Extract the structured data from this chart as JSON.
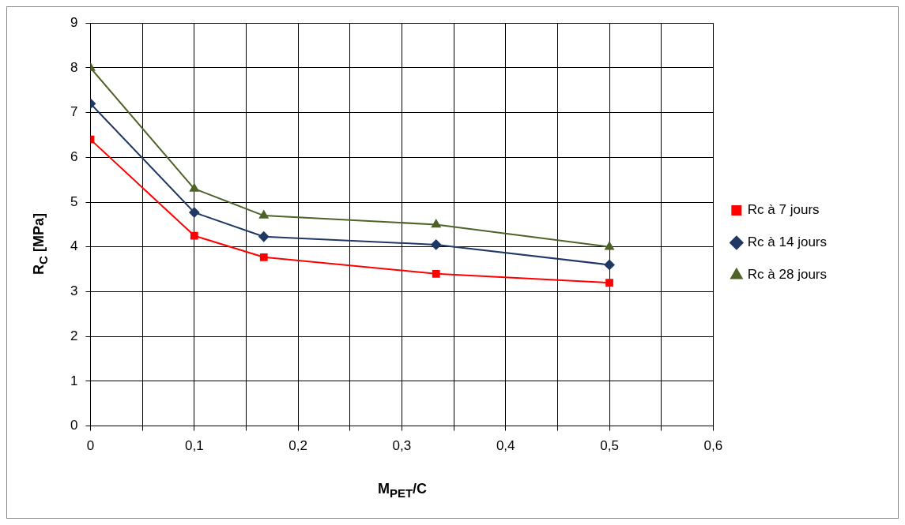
{
  "chart_data": {
    "type": "line",
    "xlabel": "M$_{PET}$/C",
    "ylabel": "R$_{C}$ [MPa]",
    "x": [
      0,
      0.1,
      0.167,
      0.333,
      0.5
    ],
    "series": [
      {
        "name": "Rc à 7 jours",
        "color": "#ff0000",
        "marker": "square",
        "values": [
          6.4,
          4.25,
          3.77,
          3.4,
          3.2
        ]
      },
      {
        "name": "Rc à 14 jours",
        "color": "#1f3864",
        "marker": "diamond",
        "values": [
          7.2,
          4.77,
          4.23,
          4.05,
          3.6
        ]
      },
      {
        "name": "Rc à 28 jours",
        "color": "#4f6228",
        "marker": "triangle",
        "values": [
          8,
          5.3,
          4.7,
          4.5,
          4.0
        ]
      }
    ],
    "xlim": [
      0,
      0.6
    ],
    "xticks": [
      0,
      {
        "value": 0.05,
        "label": null
      },
      {
        "value": 0.1,
        "label": "0,1"
      },
      {
        "value": 0.15,
        "label": null
      },
      {
        "value": 0.2,
        "label": "0,2"
      },
      {
        "value": 0.25,
        "label": null
      },
      {
        "value": 0.3,
        "label": "0,3"
      },
      {
        "value": 0.35,
        "label": null
      },
      {
        "value": 0.4,
        "label": "0,4"
      },
      {
        "value": 0.45,
        "label": null
      },
      {
        "value": 0.5,
        "label": "0,5"
      },
      {
        "value": 0.55,
        "label": null
      },
      {
        "value": 0.6,
        "label": "0,6"
      }
    ],
    "ylim": [
      0,
      9
    ],
    "yticks": [
      0,
      1,
      2,
      3,
      4,
      5,
      6,
      7,
      8,
      9
    ],
    "grid": true,
    "legend": "right",
    "line_style": "solid"
  }
}
